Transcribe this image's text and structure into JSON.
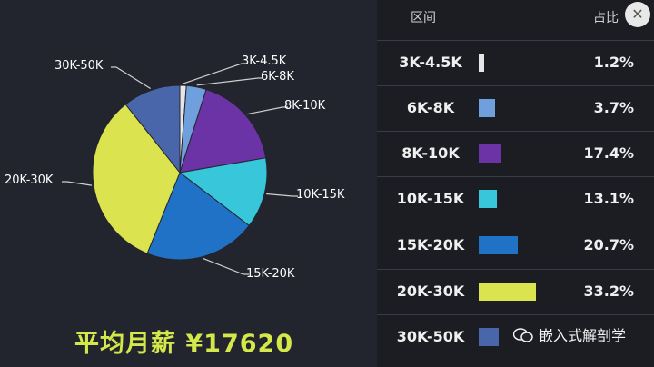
{
  "chart_data": {
    "type": "pie",
    "categories": [
      "3K-4.5K",
      "6K-8K",
      "8K-10K",
      "10K-15K",
      "15K-20K",
      "20K-30K",
      "30K-50K"
    ],
    "values": [
      1.2,
      3.7,
      17.4,
      13.1,
      20.7,
      33.2,
      10.7
    ],
    "value_labels": [
      "1.2%",
      "3.7%",
      "17.4%",
      "13.1%",
      "20.7%",
      "33.2%",
      ""
    ],
    "colors": [
      "#e6e6e6",
      "#6f9fdc",
      "#6b33a5",
      "#37c6da",
      "#1f72c6",
      "#dbe34e",
      "#4a66aa"
    ]
  },
  "summary": {
    "average_salary": "平均月薪 ¥17620"
  },
  "table": {
    "header_range": "区间",
    "header_share": "占比"
  },
  "watermark": {
    "text": "嵌入式解剖学"
  },
  "icons": {
    "close": "close-icon",
    "watermark": "wechat-icon"
  }
}
